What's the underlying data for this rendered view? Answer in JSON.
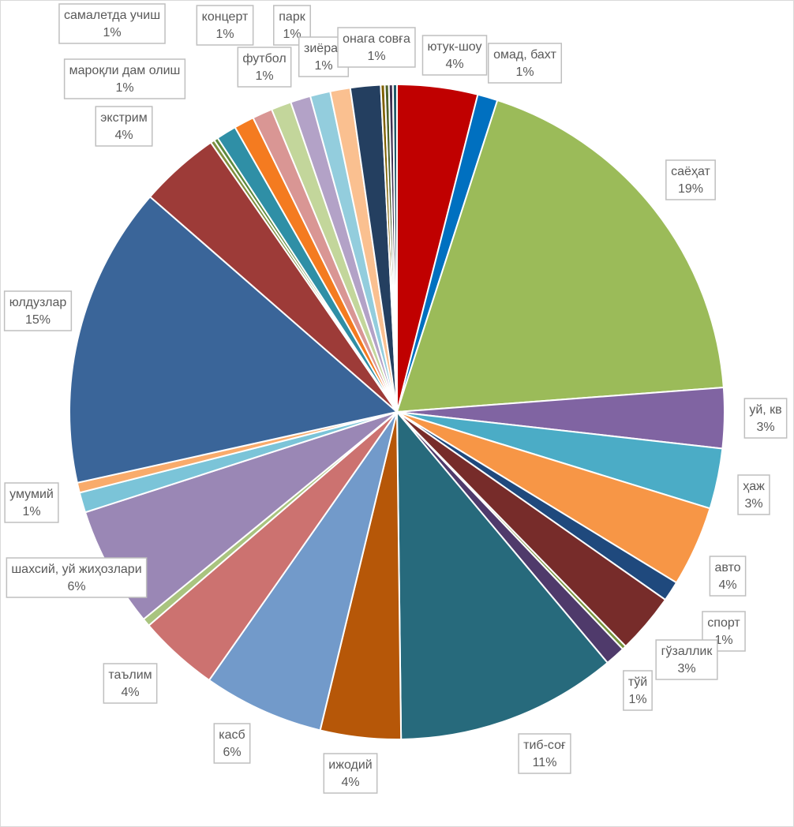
{
  "chart_data": {
    "type": "pie",
    "categories": [
      "ютук-шоу",
      "омад, бахт",
      "саёҳат",
      "уй, кв",
      "ҳаж",
      "авто",
      "спорт",
      "гўзаллик",
      null,
      "тўй",
      "тиб-соғ",
      "ижодий",
      "касб",
      "таълим",
      null,
      "шахсий, уй жиҳозлари",
      "умумий",
      null,
      "юлдузлар",
      "экстрим",
      null,
      null,
      "мароқли дам олиш",
      "самалетда учиш",
      "концерт",
      "футбол",
      "парк",
      "зиёрат",
      "онага совға",
      null,
      null,
      null,
      null,
      null
    ],
    "values": [
      4,
      1,
      19,
      3,
      3,
      4,
      1,
      3,
      0.2,
      1,
      11,
      4,
      6,
      4,
      0.4,
      6,
      1,
      0.5,
      15,
      4,
      0.2,
      0.2,
      1,
      1,
      1,
      1,
      1,
      1,
      1,
      1.5,
      0.2,
      0.2,
      0.2,
      0.2
    ],
    "value_labels": [
      "4%",
      "1%",
      "19%",
      "3%",
      "3%",
      "4%",
      "1%",
      "3%",
      null,
      "1%",
      "11%",
      "4%",
      "6%",
      "4%",
      null,
      "6%",
      "1%",
      null,
      "15%",
      "4%",
      null,
      null,
      "1%",
      "1%",
      "1%",
      "1%",
      "1%",
      "1%",
      "1%",
      null,
      null,
      null,
      null,
      null
    ],
    "colors": [
      "#c00000",
      "#0070c0",
      "#9bbb59",
      "#8064a2",
      "#4bacc6",
      "#f79646",
      "#1f497d",
      "#772c2a",
      "#77933c",
      "#4f3a6b",
      "#276a7c",
      "#b65708",
      "#729aca",
      "#cc7270",
      "#a9c47f",
      "#9a87b5",
      "#7bc4d8",
      "#f9ab6b",
      "#3a6599",
      "#9d3b38",
      "#7f8f3d",
      "#5e8a3d",
      "#2f8fa6",
      "#f47b20",
      "#d99694",
      "#c3d69b",
      "#b3a2c7",
      "#93cddd",
      "#fac090",
      "#243f60",
      "#7f6000",
      "#4f6228",
      "#403151",
      "#215968"
    ]
  }
}
